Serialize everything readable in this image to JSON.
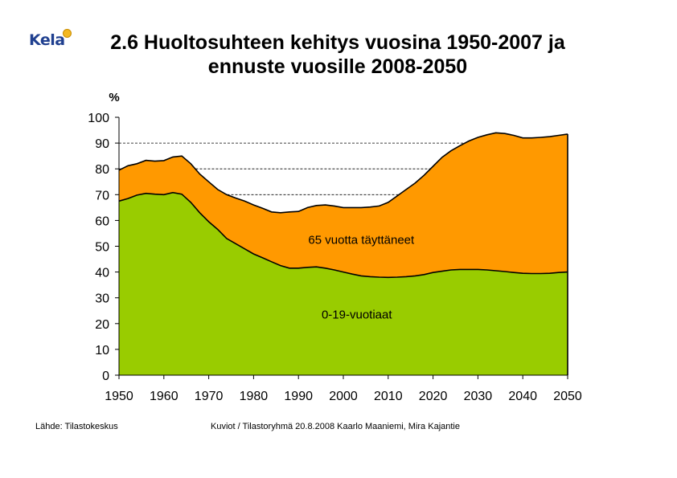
{
  "header": {
    "logo_text": "Kela",
    "title_line1": "2.6 Huoltosuhteen kehitys vuosina 1950-2007 ja",
    "title_line2": "ennuste vuosille 2008-2050"
  },
  "footer": {
    "source": "Lähde: Tilastokeskus",
    "credits": "Kuviot / Tilastoryhmä   20.8.2008   Kaarlo Maaniemi, Mira Kajantie"
  },
  "colors": {
    "young": "#99cc00",
    "old": "#ff9900",
    "line": "#000000"
  },
  "chart_data": {
    "type": "area",
    "stacked": true,
    "ylabel": "%",
    "xlim": [
      1950,
      2050
    ],
    "ylim": [
      0,
      100
    ],
    "yticks": [
      0,
      10,
      20,
      30,
      40,
      50,
      60,
      70,
      80,
      90,
      100
    ],
    "xticks": [
      1950,
      1960,
      1970,
      1980,
      1990,
      2000,
      2010,
      2020,
      2030,
      2040,
      2050
    ],
    "dashed_gridlines": [
      70,
      80,
      90
    ],
    "x": [
      1950,
      1952,
      1954,
      1956,
      1958,
      1960,
      1962,
      1964,
      1966,
      1968,
      1970,
      1972,
      1974,
      1976,
      1978,
      1980,
      1982,
      1984,
      1986,
      1988,
      1990,
      1992,
      1994,
      1996,
      1998,
      2000,
      2002,
      2004,
      2006,
      2008,
      2010,
      2012,
      2014,
      2016,
      2018,
      2020,
      2022,
      2024,
      2026,
      2028,
      2030,
      2032,
      2034,
      2036,
      2038,
      2040,
      2042,
      2044,
      2046,
      2048,
      2050
    ],
    "series": [
      {
        "name": "0-19-vuotiaat",
        "values": [
          67.5,
          68.5,
          69.8,
          70.5,
          70.2,
          70.0,
          70.8,
          70.2,
          67.0,
          63.0,
          59.5,
          56.5,
          53.0,
          51.0,
          49.0,
          47.0,
          45.5,
          44.0,
          42.5,
          41.5,
          41.5,
          41.8,
          42.0,
          41.5,
          40.8,
          40.0,
          39.2,
          38.5,
          38.2,
          38.0,
          37.9,
          38.0,
          38.2,
          38.5,
          39.0,
          39.8,
          40.3,
          40.8,
          41.0,
          41.0,
          41.0,
          40.8,
          40.5,
          40.2,
          39.8,
          39.5,
          39.4,
          39.4,
          39.5,
          39.8,
          40.0
        ]
      },
      {
        "name": "65 vuotta täyttäneet",
        "values": [
          12.0,
          12.7,
          12.2,
          12.8,
          12.8,
          13.2,
          13.8,
          14.8,
          15.0,
          15.0,
          15.5,
          15.5,
          17.0,
          17.7,
          18.5,
          19.0,
          19.2,
          19.3,
          20.5,
          21.8,
          22.0,
          23.2,
          23.8,
          24.5,
          24.8,
          25.0,
          25.8,
          26.5,
          27.0,
          27.6,
          29.1,
          31.5,
          33.8,
          36.0,
          38.5,
          41.2,
          44.2,
          46.2,
          48.0,
          49.8,
          51.2,
          52.4,
          53.5,
          53.5,
          53.2,
          52.5,
          52.6,
          52.8,
          53.0,
          53.2,
          53.5
        ]
      }
    ],
    "annotations": [
      {
        "text": "65 vuotta täyttäneet",
        "x": 2004,
        "y": 51
      },
      {
        "text": "0-19-vuotiaat",
        "x": 2003,
        "y": 22
      }
    ]
  }
}
